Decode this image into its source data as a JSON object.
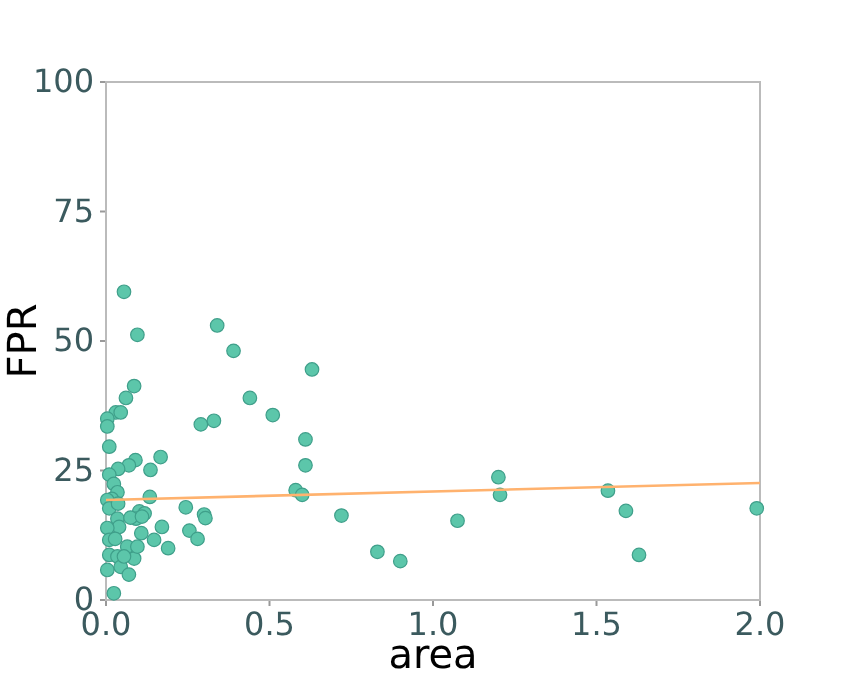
{
  "chart_data": {
    "type": "scatter",
    "xlabel": "area",
    "ylabel": "FPR",
    "xlim": [
      0,
      2.0
    ],
    "ylim": [
      0,
      100
    ],
    "xticks": [
      {
        "value": 0,
        "label": "0.0"
      },
      0.5,
      {
        "value": 1,
        "label": "1.0"
      },
      1.5,
      {
        "value": 2,
        "label": "2.0"
      }
    ],
    "yticks": [
      0,
      25,
      50,
      75,
      100
    ],
    "grid": false,
    "series": [
      {
        "marker": "circle",
        "color": "#5cc6aa",
        "x": [
          0.055,
          0.096,
          0.34,
          0.39,
          0.44,
          0.51,
          0.63,
          0.086,
          0.061,
          0.03,
          0.045,
          0.004,
          0.004,
          0.01,
          0.29,
          0.33,
          0.61,
          0.61,
          0.58,
          0.6,
          0.09,
          0.07,
          0.037,
          0.167,
          0.136,
          0.134,
          0.244,
          0.3,
          0.304,
          0.72,
          0.83,
          0.9,
          1.075,
          1.2,
          1.205,
          1.535,
          1.59,
          1.63,
          1.99,
          0.01,
          0.024,
          0.035,
          0.018,
          0.004,
          0.01,
          0.037,
          0.035,
          0.04,
          0.004,
          0.01,
          0.028,
          0.01,
          0.004,
          0.024,
          0.035,
          0.045,
          0.065,
          0.07,
          0.086,
          0.096,
          0.108,
          0.102,
          0.092,
          0.075,
          0.118,
          0.11,
          0.147,
          0.171,
          0.19,
          0.255,
          0.28,
          0.055
        ],
        "values": [
          59.5,
          51.2,
          53,
          48.1,
          39,
          35.7,
          44.5,
          41.3,
          39,
          36.2,
          36.2,
          35,
          33.5,
          29.6,
          33.9,
          34.6,
          31,
          26,
          21.2,
          20.3,
          27,
          26,
          25.3,
          27.6,
          25.1,
          19.9,
          17.9,
          16.5,
          15.8,
          16.3,
          9.3,
          7.5,
          15.3,
          23.7,
          20.3,
          21.1,
          17.2,
          8.7,
          17.7,
          24.2,
          22.4,
          20.8,
          19.5,
          19.3,
          17.7,
          18.6,
          15.7,
          14.1,
          13.9,
          11.6,
          11.8,
          8.7,
          5.8,
          1.3,
          8.4,
          6.4,
          10.3,
          4.9,
          8,
          10.3,
          12.9,
          17.1,
          15.7,
          15.9,
          16.7,
          16.1,
          11.6,
          14.1,
          10,
          13.4,
          11.8,
          8.4
        ]
      },
      {
        "type": "line",
        "marker": "none",
        "color": "#ffb26e",
        "x": [
          0,
          2.0
        ],
        "values": [
          19.3,
          22.6
        ]
      }
    ]
  }
}
